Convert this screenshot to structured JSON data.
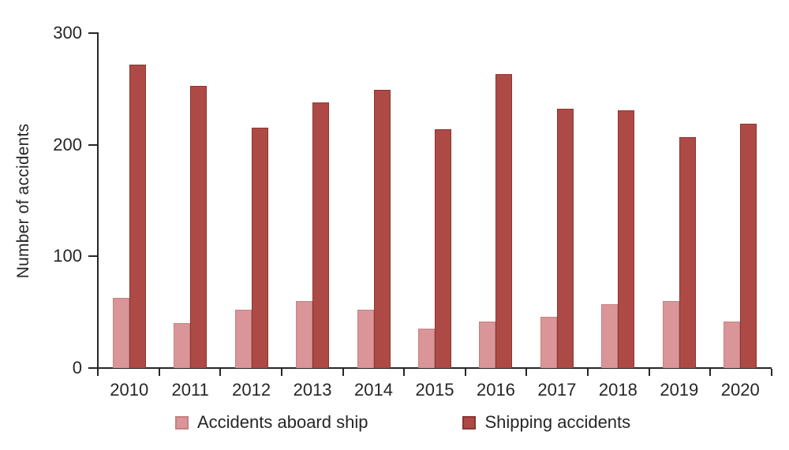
{
  "chart_data": {
    "type": "bar",
    "title": "",
    "ylabel": "Number of accidents",
    "xlabel": "",
    "categories": [
      "2010",
      "2011",
      "2012",
      "2013",
      "2014",
      "2015",
      "2016",
      "2017",
      "2018",
      "2019",
      "2020"
    ],
    "series": [
      {
        "name": "Accidents aboard ship",
        "color": "#D99597",
        "border_color": "#C5817F",
        "values": [
          63,
          40,
          52,
          60,
          52,
          35,
          42,
          46,
          57,
          60,
          42
        ]
      },
      {
        "name": "Shipping accidents",
        "color": "#AE4A45",
        "border_color": "#8A3531",
        "values": [
          272,
          253,
          215,
          238,
          249,
          214,
          263,
          232,
          231,
          207,
          219
        ]
      }
    ],
    "ylim": [
      0,
      300
    ],
    "yticks": [
      0,
      100,
      200,
      300
    ],
    "grid": false,
    "legend_position": "bottom"
  },
  "colors": {
    "axis": "#262626",
    "text": "#262626",
    "background": "#FFFFFF"
  }
}
